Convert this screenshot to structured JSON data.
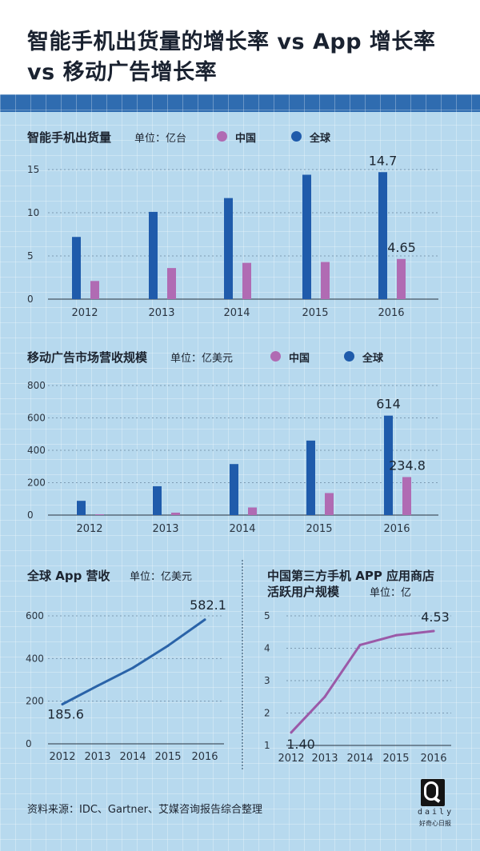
{
  "header": {
    "title_line1": "智能手机出货量的增长率 vs App 增长率",
    "title_line2": "vs 移动广告增长率"
  },
  "colors": {
    "china": "#b06bb3",
    "global": "#1f5bab",
    "line": "#2a63a8",
    "background": "#b7d9ee",
    "band": "#2f6cb0"
  },
  "panels": {
    "shipments": {
      "title": "智能手机出货量",
      "unit": "单位：亿台",
      "legend_china": "中国",
      "legend_global": "全球"
    },
    "ads": {
      "title": "移动广告市场营收规模",
      "unit": "单位：亿美元",
      "legend_china": "中国",
      "legend_global": "全球"
    },
    "app_revenue": {
      "title": "全球 App 营收",
      "unit": "单位：亿美元"
    },
    "china_app_stores": {
      "title_line1": "中国第三方手机 APP 应用商店",
      "title_line2": "活跃用户规模",
      "unit": "单位：亿"
    }
  },
  "source": "资料来源：IDC、Gartner、艾媒咨询报告综合整理",
  "logo": {
    "daily": "daily",
    "sub": "好奇心日报"
  },
  "chart_data": [
    {
      "type": "bar",
      "title": "智能手机出货量",
      "categories": [
        "2012",
        "2013",
        "2014",
        "2015",
        "2016"
      ],
      "series": [
        {
          "name": "全球",
          "values": [
            7.2,
            10.1,
            11.7,
            14.4,
            14.7
          ]
        },
        {
          "name": "中国",
          "values": [
            2.1,
            3.6,
            4.2,
            4.3,
            4.65
          ]
        }
      ],
      "ylim": [
        0,
        15
      ],
      "yticks": [
        "0",
        "5",
        "10",
        "15"
      ],
      "labels": [
        {
          "series": 0,
          "index": 4,
          "text": "14.7"
        },
        {
          "series": 1,
          "index": 4,
          "text": "4.65"
        }
      ]
    },
    {
      "type": "bar",
      "title": "移动广告市场营收规模",
      "categories": [
        "2012",
        "2013",
        "2014",
        "2015",
        "2016"
      ],
      "series": [
        {
          "name": "全球",
          "values": [
            88,
            178,
            315,
            460,
            614
          ]
        },
        {
          "name": "中国",
          "values": [
            5,
            15,
            47,
            136,
            234.8
          ]
        }
      ],
      "ylim": [
        0,
        800
      ],
      "yticks": [
        "0",
        "200",
        "400",
        "600",
        "800"
      ],
      "labels": [
        {
          "series": 0,
          "index": 4,
          "text": "614"
        },
        {
          "series": 1,
          "index": 4,
          "text": "234.8"
        }
      ]
    },
    {
      "type": "line",
      "title": "全球 App 营收",
      "x": [
        "2012",
        "2013",
        "2014",
        "2015",
        "2016"
      ],
      "values": [
        185.6,
        272,
        356,
        460,
        582.1
      ],
      "ylim": [
        0,
        600
      ],
      "yticks": [
        "0",
        "200",
        "400",
        "600"
      ],
      "labels": [
        {
          "index": 0,
          "text": "185.6"
        },
        {
          "index": 4,
          "text": "582.1"
        }
      ]
    },
    {
      "type": "line",
      "title": "中国第三方手机 APP 应用商店活跃用户规模",
      "x": [
        "2012",
        "2013",
        "2014",
        "2015",
        "2016"
      ],
      "values": [
        1.4,
        2.5,
        4.1,
        4.4,
        4.53
      ],
      "ylim": [
        1,
        5
      ],
      "yticks": [
        "1",
        "2",
        "3",
        "4",
        "5"
      ],
      "labels": [
        {
          "index": 0,
          "text": "1.40"
        },
        {
          "index": 4,
          "text": "4.53"
        }
      ]
    }
  ]
}
